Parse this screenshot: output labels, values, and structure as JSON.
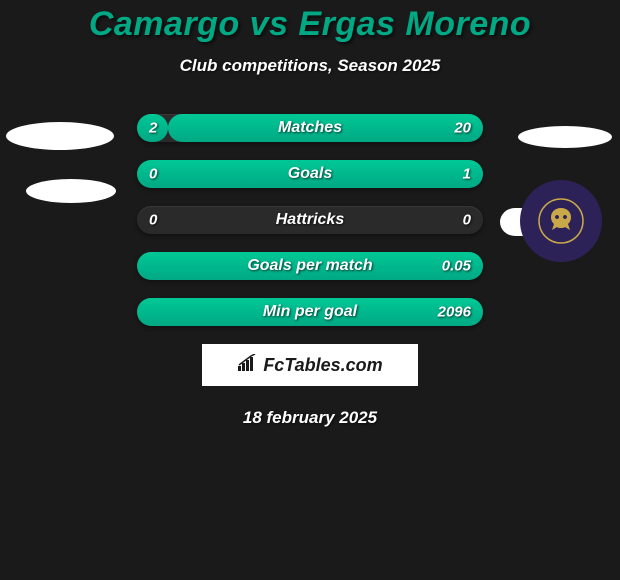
{
  "header": {
    "title": "Camargo vs Ergas Moreno",
    "subtitle": "Club competitions, Season 2025"
  },
  "stats": [
    {
      "label": "Matches",
      "left_value": "2",
      "right_value": "20",
      "left_width_pct": 9,
      "right_width_pct": 91
    },
    {
      "label": "Goals",
      "left_value": "0",
      "right_value": "1",
      "left_width_pct": 0,
      "right_width_pct": 100
    },
    {
      "label": "Hattricks",
      "left_value": "0",
      "right_value": "0",
      "left_width_pct": 0,
      "right_width_pct": 0
    },
    {
      "label": "Goals per match",
      "left_value": "",
      "right_value": "0.05",
      "left_width_pct": 0,
      "right_width_pct": 100
    },
    {
      "label": "Min per goal",
      "left_value": "",
      "right_value": "2096",
      "left_width_pct": 0,
      "right_width_pct": 100
    }
  ],
  "footer": {
    "logo_text": "FcTables.com",
    "date": "18 february 2025"
  },
  "colors": {
    "background": "#1a1a1a",
    "accent": "#00a884",
    "bar_bg": "#2a2a2a",
    "bar_fill": "#00c896",
    "text": "#ffffff",
    "badge_bg": "#2d2258",
    "badge_fg": "#c9a84a"
  }
}
